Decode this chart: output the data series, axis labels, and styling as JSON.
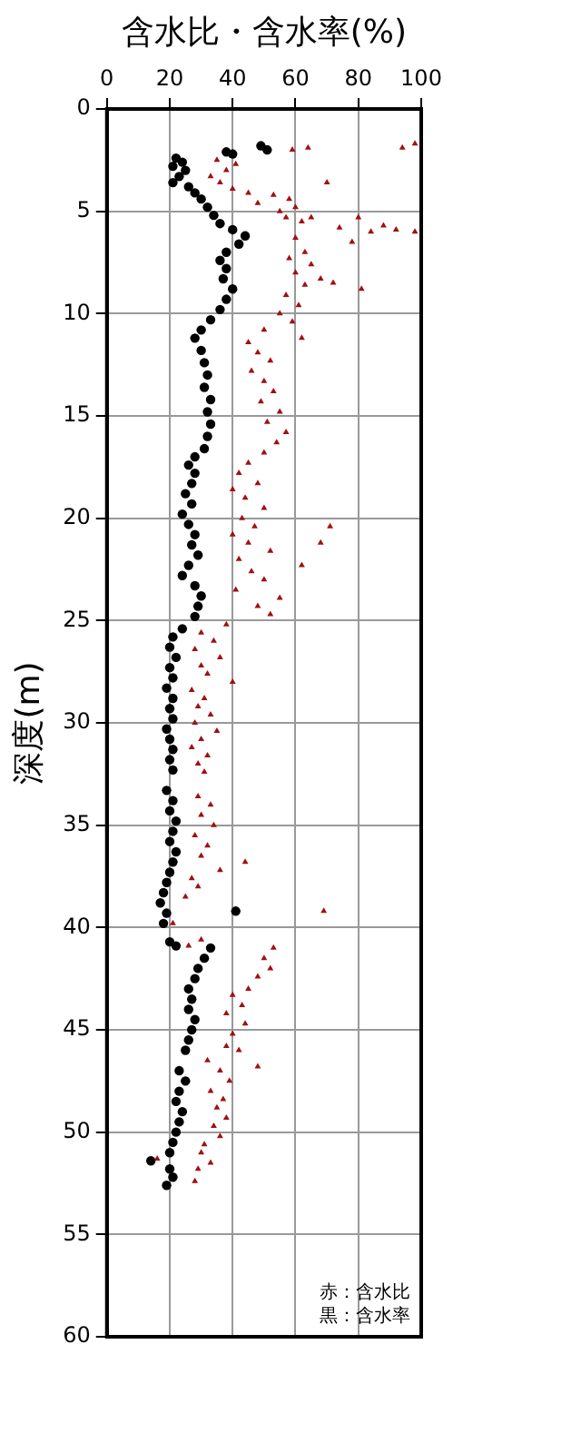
{
  "chart_data": {
    "type": "scatter",
    "xlabel": "含水比・含水率(%)",
    "ylabel": "深度(m)",
    "xlim": [
      0,
      100
    ],
    "xticks": [
      0,
      20,
      40,
      60,
      80,
      100
    ],
    "ylim": [
      60,
      0
    ],
    "yticks": [
      0,
      5,
      10,
      15,
      20,
      25,
      30,
      35,
      40,
      45,
      50,
      55,
      60
    ],
    "grid": true,
    "legend": false,
    "annotations": [
      "赤：含水比",
      "黒：含水率"
    ],
    "series": [
      {
        "color": "#a01010",
        "marker": "triangle",
        "x": [
          98,
          94,
          64,
          59,
          41,
          35,
          38,
          33,
          36,
          40,
          45,
          70,
          53,
          58,
          48,
          60,
          55,
          57,
          62,
          65,
          80,
          74,
          88,
          84,
          92,
          98,
          78,
          60,
          63,
          58,
          65,
          60,
          68,
          63,
          72,
          81,
          57,
          61,
          55,
          59,
          62,
          50,
          45,
          48,
          52,
          46,
          50,
          53,
          49,
          55,
          51,
          57,
          54,
          50,
          45,
          42,
          48,
          40,
          44,
          50,
          43,
          47,
          71,
          40,
          45,
          68,
          52,
          42,
          62,
          46,
          50,
          41,
          55,
          48,
          52,
          38,
          30,
          34,
          28,
          36,
          30,
          32,
          40,
          27,
          31,
          29,
          33,
          28,
          35,
          30,
          27,
          32,
          29,
          31,
          29,
          33,
          30,
          34,
          28,
          32,
          30,
          44,
          36,
          27,
          29,
          25,
          69,
          21,
          30,
          26,
          53,
          50,
          52,
          48,
          45,
          40,
          43,
          38,
          44,
          40,
          38,
          42,
          48,
          32,
          36,
          39,
          33,
          37,
          35,
          38,
          34,
          36,
          31,
          30,
          16,
          33,
          29,
          28
        ],
        "values": [
          1.7,
          1.9,
          1.9,
          2.0,
          2.7,
          2.5,
          3.0,
          3.3,
          3.6,
          3.9,
          4.1,
          3.6,
          4.2,
          4.4,
          4.6,
          4.8,
          5.0,
          5.3,
          5.5,
          5.3,
          5.3,
          5.8,
          5.7,
          6.0,
          5.9,
          6.0,
          6.5,
          6.3,
          7.0,
          7.3,
          7.6,
          8.0,
          8.3,
          8.6,
          8.5,
          8.8,
          9.1,
          9.6,
          10.0,
          10.4,
          11.2,
          10.8,
          11.4,
          11.9,
          12.3,
          12.8,
          13.3,
          13.8,
          14.3,
          14.8,
          15.3,
          15.8,
          16.3,
          16.8,
          17.3,
          17.8,
          18.3,
          18.6,
          19.0,
          19.5,
          20.0,
          20.4,
          20.4,
          20.8,
          21.2,
          21.2,
          21.6,
          22.0,
          22.3,
          22.6,
          23.0,
          23.5,
          23.9,
          24.3,
          24.7,
          25.2,
          25.6,
          26.0,
          26.4,
          26.8,
          27.2,
          27.6,
          28.0,
          28.4,
          28.8,
          29.2,
          29.6,
          30.0,
          30.4,
          30.8,
          31.2,
          31.6,
          32.0,
          32.4,
          33.6,
          34.0,
          34.5,
          35.0,
          35.5,
          36.0,
          36.5,
          36.8,
          37.2,
          37.6,
          38.0,
          38.5,
          39.2,
          39.8,
          40.6,
          40.9,
          41.0,
          41.5,
          42.0,
          42.4,
          43.0,
          43.3,
          43.8,
          44.2,
          44.7,
          45.2,
          45.8,
          46.0,
          46.8,
          46.5,
          47.0,
          47.5,
          48.0,
          48.4,
          48.8,
          49.3,
          49.7,
          50.2,
          50.6,
          51.0,
          51.3,
          51.5,
          51.8,
          52.4
        ]
      },
      {
        "color": "#000000",
        "marker": "circle",
        "x": [
          49,
          51,
          38,
          40,
          22,
          24,
          21,
          25,
          23,
          21,
          26,
          28,
          30,
          32,
          34,
          36,
          40,
          44,
          42,
          38,
          36,
          38,
          37,
          40,
          38,
          36,
          33,
          30,
          28,
          30,
          31,
          32,
          31,
          33,
          32,
          33,
          32,
          31,
          28,
          26,
          28,
          27,
          25,
          27,
          24,
          26,
          28,
          27,
          29,
          26,
          24,
          28,
          30,
          29,
          28,
          24,
          21,
          20,
          22,
          20,
          21,
          19,
          21,
          20,
          21,
          19,
          20,
          21,
          20,
          21,
          19,
          21,
          20,
          22,
          21,
          20,
          22,
          21,
          20,
          19,
          18,
          17,
          19,
          41,
          18,
          20,
          22,
          33,
          31,
          29,
          28,
          26,
          27,
          26,
          28,
          27,
          26,
          25,
          23,
          25,
          23,
          22,
          24,
          23,
          22,
          21,
          20,
          14,
          20,
          21,
          19
        ],
        "values": [
          1.8,
          2.0,
          2.1,
          2.2,
          2.4,
          2.6,
          2.8,
          3.0,
          3.3,
          3.6,
          3.8,
          4.1,
          4.4,
          4.8,
          5.2,
          5.6,
          5.9,
          6.2,
          6.6,
          7.0,
          7.4,
          7.8,
          8.3,
          8.8,
          9.3,
          9.8,
          10.3,
          10.8,
          11.2,
          11.8,
          12.4,
          13.0,
          13.6,
          14.2,
          14.8,
          15.4,
          16.0,
          16.6,
          17.0,
          17.4,
          17.8,
          18.3,
          18.8,
          19.3,
          19.8,
          20.3,
          20.8,
          21.3,
          21.8,
          22.3,
          22.8,
          23.3,
          23.8,
          24.3,
          24.8,
          25.4,
          25.8,
          26.3,
          26.8,
          27.3,
          27.8,
          28.3,
          28.8,
          29.3,
          29.8,
          30.3,
          30.8,
          31.3,
          31.8,
          32.3,
          33.3,
          33.8,
          34.3,
          34.8,
          35.3,
          35.8,
          36.3,
          36.8,
          37.3,
          37.8,
          38.3,
          38.8,
          39.3,
          39.2,
          39.8,
          40.7,
          40.9,
          41.0,
          41.5,
          42.0,
          42.5,
          43.0,
          43.5,
          44.0,
          44.5,
          45.0,
          45.5,
          46.0,
          47.0,
          47.5,
          48.0,
          48.5,
          49.0,
          49.5,
          50.0,
          50.5,
          51.0,
          51.4,
          51.8,
          52.2,
          52.6
        ]
      }
    ]
  }
}
